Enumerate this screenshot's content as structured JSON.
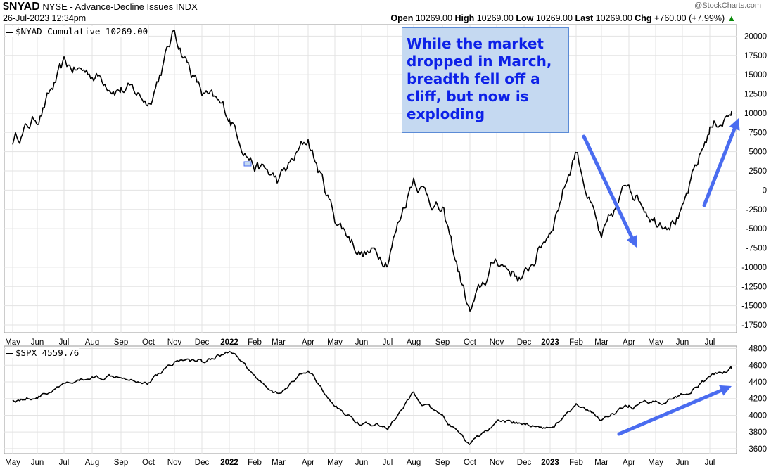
{
  "header": {
    "symbol": "$NYAD",
    "description": "NYSE - Advance-Decline Issues",
    "exchange": "INDX",
    "timestamp": "26-Jul-2023 12:34pm",
    "open_label": "Open",
    "open": "10269.00",
    "high_label": "High",
    "high": "10269.00",
    "low_label": "Low",
    "low": "10269.00",
    "last_label": "Last",
    "last": "10269.00",
    "chg_label": "Chg",
    "chg": "+760.00 (+7.99%)",
    "chg_arrow": "▲",
    "watermark": "@StockCharts.com"
  },
  "callout": {
    "text": "While the market dropped in March, breadth fell off a cliff, but now is exploding",
    "color": "#0d21e8",
    "background": "#c5d9f1"
  },
  "colors": {
    "line": "#000000",
    "arrow": "#4a6cf0",
    "grid": "#e3e3e3"
  },
  "chart_data": [
    {
      "type": "line",
      "legend": "$NYAD Cumulative 10269.00",
      "y_ticks": [
        20000,
        17500,
        15000,
        12500,
        10000,
        7500,
        5000,
        2500,
        0,
        -2500,
        -5000,
        -7500,
        -10000,
        -12500,
        -15000,
        -17500
      ],
      "y_tick_labels": [
        "20000",
        "17500",
        "15000",
        "12500",
        "10000",
        "7500",
        "5000",
        "2500",
        "0",
        "-2500",
        "-5000",
        "-7500",
        "-10000",
        "-12500",
        "-15000",
        "-17500"
      ],
      "ylim": [
        -18500,
        21500
      ],
      "x_tick_labels": [
        "May",
        "Jun",
        "Jul",
        "Aug",
        "Sep",
        "Oct",
        "Nov",
        "Dec",
        "2022",
        "Feb",
        "Mar",
        "Apr",
        "May",
        "Jun",
        "Jul",
        "Aug",
        "Sep",
        "Oct",
        "Nov",
        "Dec",
        "2023",
        "Feb",
        "Mar",
        "Apr",
        "May",
        "Jun",
        "Jul"
      ],
      "x_bold_labels": [
        "2022",
        "2023"
      ],
      "grid": true,
      "points": [
        [
          "May 2021",
          6500
        ],
        [
          "Jun 2021",
          9500
        ],
        [
          "Jul 2021",
          15800
        ],
        [
          "Aug 2021",
          15200
        ],
        [
          "Sep 2021",
          13500
        ],
        [
          "Oct 2021",
          11500
        ],
        [
          "Nov 2021",
          20500
        ],
        [
          "Dec 2021",
          12500
        ],
        [
          "Jan 2022",
          9500
        ],
        [
          "Feb 2022",
          3500
        ],
        [
          "Mar 2022",
          1000
        ],
        [
          "Apr 2022",
          6500
        ],
        [
          "May 2022",
          -3500
        ],
        [
          "Jun 2022",
          -8000
        ],
        [
          "Jul 2022",
          -8500
        ],
        [
          "Aug 2022",
          2000
        ],
        [
          "Sep 2022",
          -3000
        ],
        [
          "Oct 2022",
          -16000
        ],
        [
          "Nov 2022",
          -9000
        ],
        [
          "Dec 2022",
          -11500
        ],
        [
          "Jan 2023",
          -5000
        ],
        [
          "Feb 2023",
          5500
        ],
        [
          "Mar 2023",
          -7000
        ],
        [
          "Apr 2023",
          1000
        ],
        [
          "May 2023",
          -3500
        ],
        [
          "Jun 2023",
          -3000
        ],
        [
          "Jul 2023",
          8000
        ],
        [
          "Jul 26 2023",
          10269
        ]
      ]
    },
    {
      "type": "line",
      "legend": "$SPX 4559.76",
      "y_ticks": [
        4800,
        4600,
        4400,
        4200,
        4000,
        3800,
        3600
      ],
      "y_tick_labels": [
        "4800",
        "4600",
        "4400",
        "4200",
        "4000",
        "3800",
        "3600"
      ],
      "ylim": [
        3540,
        4830
      ],
      "x_tick_labels": [
        "May",
        "Jun",
        "Jul",
        "Aug",
        "Sep",
        "Oct",
        "Nov",
        "Dec",
        "2022",
        "Feb",
        "Mar",
        "Apr",
        "May",
        "Jun",
        "Jul",
        "Aug",
        "Sep",
        "Oct",
        "Nov",
        "Dec",
        "2023",
        "Feb",
        "Mar",
        "Apr",
        "May",
        "Jun",
        "Jul"
      ],
      "x_bold_labels": [
        "2022",
        "2023"
      ],
      "grid": true,
      "points": [
        [
          "May 2021",
          4180
        ],
        [
          "Jun 2021",
          4230
        ],
        [
          "Jul 2021",
          4350
        ],
        [
          "Aug 2021",
          4450
        ],
        [
          "Sep 2021",
          4500
        ],
        [
          "Oct 2021",
          4400
        ],
        [
          "Nov 2021",
          4650
        ],
        [
          "Dec 2021",
          4650
        ],
        [
          "Jan 2022",
          4770
        ],
        [
          "Feb 2022",
          4450
        ],
        [
          "Mar 2022",
          4250
        ],
        [
          "Apr 2022",
          4550
        ],
        [
          "May 2022",
          4100
        ],
        [
          "Jun 2022",
          3900
        ],
        [
          "Jul 2022",
          3850
        ],
        [
          "Aug 2022",
          4250
        ],
        [
          "Sep 2022",
          3950
        ],
        [
          "Oct 2022",
          3650
        ],
        [
          "Nov 2022",
          3900
        ],
        [
          "Dec 2022",
          3900
        ],
        [
          "Jan 2023",
          3850
        ],
        [
          "Feb 2023",
          4100
        ],
        [
          "Mar 2023",
          3950
        ],
        [
          "Apr 2023",
          4100
        ],
        [
          "May 2023",
          4150
        ],
        [
          "Jun 2023",
          4250
        ],
        [
          "Jul 2023",
          4450
        ],
        [
          "Jul 26 2023",
          4559.76
        ]
      ]
    }
  ]
}
